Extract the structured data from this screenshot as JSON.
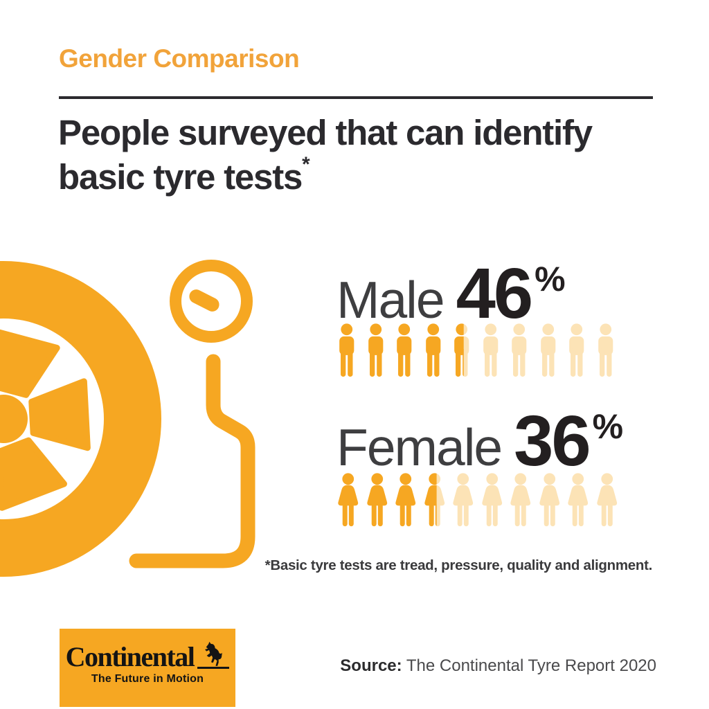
{
  "header": {
    "kicker": "Gender Comparison",
    "heading_line1": "People surveyed that can identify",
    "heading_line2": "basic tyre tests",
    "heading_marker": "*"
  },
  "chart_data": {
    "type": "pictogram",
    "title": "People surveyed that can identify basic tyre tests*",
    "categories": [
      "Male",
      "Female"
    ],
    "values": [
      46,
      36
    ],
    "unit": "%",
    "icons_per_row": 10,
    "value_per_icon": 10,
    "legend_position": "none",
    "footnote": "*Basic tyre tests are tread, pressure, quality and alignment.",
    "source": "Source: The Continental Tyre Report 2020"
  },
  "rows": [
    {
      "label": "Male",
      "value": "46",
      "value_num": 46,
      "pct": "%",
      "icon": "male-icon",
      "total_icons": 10
    },
    {
      "label": "Female",
      "value": "36",
      "value_num": 36,
      "pct": "%",
      "icon": "female-icon",
      "total_icons": 10
    }
  ],
  "footnote": "*Basic tyre tests are tread, pressure, quality and alignment.",
  "source": {
    "label": "Source:",
    "text": " The Continental Tyre Report 2020"
  },
  "logo": {
    "brand": "Continental",
    "tagline": "The Future in Motion"
  },
  "colors": {
    "orange": "#F6A722",
    "orange_text": "#F1A33A",
    "orange_faded": "#FCE3B6",
    "ink": "#2B2A2E",
    "gray": "#3E3E40"
  }
}
